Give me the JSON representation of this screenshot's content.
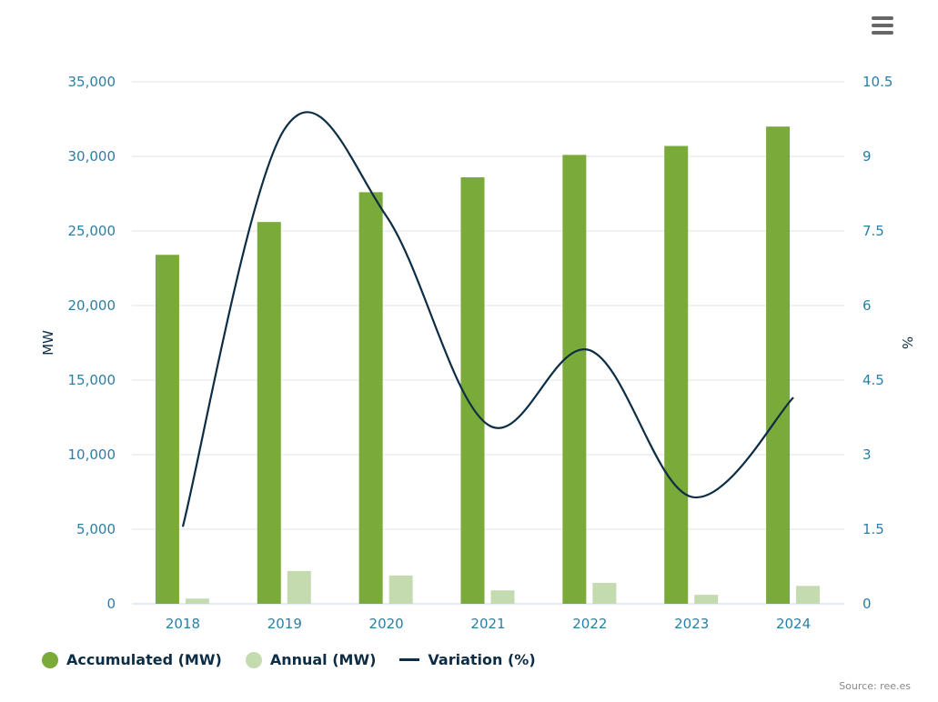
{
  "chart_data": {
    "type": "bar",
    "categories": [
      "2018",
      "2019",
      "2020",
      "2021",
      "2022",
      "2023",
      "2024"
    ],
    "series": [
      {
        "name": "Accumulated (MW)",
        "type": "bar",
        "axis": "left",
        "color": "#7aaa3a",
        "values": [
          23400,
          25600,
          27600,
          28600,
          30100,
          30700,
          32000
        ]
      },
      {
        "name": "Annual (MW)",
        "type": "bar",
        "axis": "left",
        "color": "#c4dbb0",
        "values": [
          350,
          2200,
          1900,
          900,
          1400,
          600,
          1200
        ]
      },
      {
        "name": "Variation (%)",
        "type": "line",
        "axis": "right",
        "color": "#0d2d44",
        "values": [
          1.55,
          9.55,
          7.8,
          3.6,
          5.1,
          2.15,
          4.15
        ]
      }
    ],
    "ylabel": "MW",
    "ylabel_right": "%",
    "ylim": [
      0,
      35000
    ],
    "ylim_right": [
      0,
      10.5
    ],
    "yticks": [
      "0",
      "5,000",
      "10,000",
      "15,000",
      "20,000",
      "25,000",
      "30,000",
      "35,000"
    ],
    "yticks_right": [
      "0",
      "1.5",
      "3",
      "4.5",
      "6",
      "7.5",
      "9",
      "10.5"
    ],
    "grid": true,
    "legend_position": "bottom-left"
  },
  "legend": {
    "accumulated": "Accumulated (MW)",
    "annual": "Annual (MW)",
    "variation": "Variation (%)"
  },
  "source": "Source: ree.es"
}
